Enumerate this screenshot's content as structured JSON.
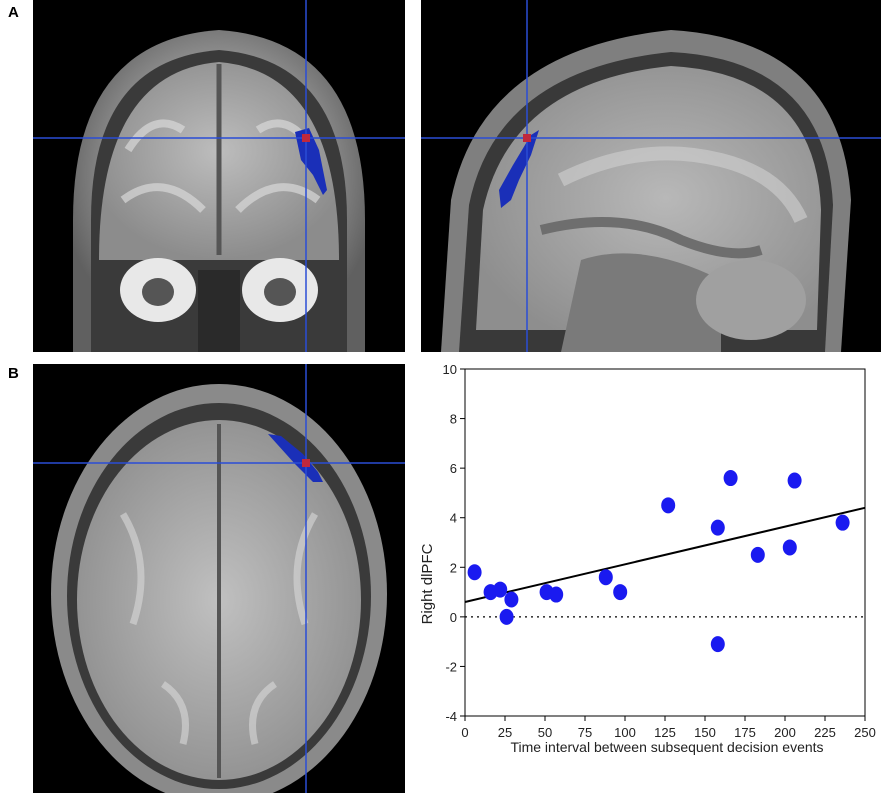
{
  "figure": {
    "panels": [
      {
        "letter": "A",
        "views": [
          "coronal",
          "sagittal"
        ]
      },
      {
        "letter": "B",
        "views": [
          "axial"
        ]
      }
    ],
    "overlay_color": "#1a2fb8",
    "crosshair_color": "#2a4dd6",
    "marker_color": "#c0283c"
  },
  "chart_data": {
    "type": "scatter",
    "title": "",
    "xlabel": "Time interval between subsequent decision events",
    "ylabel": "Right dlPFC",
    "xlim": [
      0,
      250
    ],
    "ylim": [
      -4,
      10
    ],
    "xticks": [
      0,
      25,
      50,
      75,
      100,
      125,
      150,
      175,
      200,
      225,
      250
    ],
    "yticks": [
      -4,
      -2,
      0,
      2,
      4,
      6,
      8,
      10
    ],
    "grid": false,
    "legend": "none",
    "marker_color": "#1a1af0",
    "points": [
      {
        "x": 6,
        "y": 1.8
      },
      {
        "x": 16,
        "y": 1.0
      },
      {
        "x": 22,
        "y": 1.1
      },
      {
        "x": 26,
        "y": 0.0
      },
      {
        "x": 29,
        "y": 0.7
      },
      {
        "x": 51,
        "y": 1.0
      },
      {
        "x": 57,
        "y": 0.9
      },
      {
        "x": 88,
        "y": 1.6
      },
      {
        "x": 97,
        "y": 1.0
      },
      {
        "x": 127,
        "y": 4.5
      },
      {
        "x": 158,
        "y": 3.6
      },
      {
        "x": 158,
        "y": -1.1
      },
      {
        "x": 166,
        "y": 5.6
      },
      {
        "x": 183,
        "y": 2.5
      },
      {
        "x": 203,
        "y": 2.8
      },
      {
        "x": 206,
        "y": 5.5
      },
      {
        "x": 236,
        "y": 3.8
      }
    ],
    "fit_line": {
      "x": [
        0,
        250
      ],
      "y": [
        0.6,
        4.4
      ]
    },
    "reference_line": {
      "y": 0,
      "style": "dotted"
    }
  }
}
